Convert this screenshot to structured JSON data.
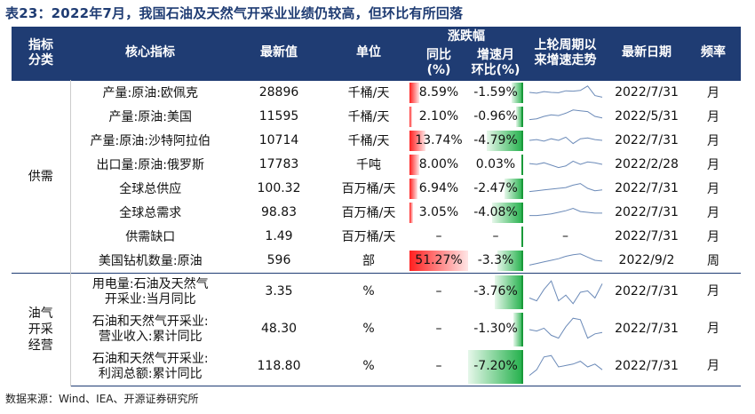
{
  "title": "表23：2022年7月，我国石油及天然气开采业业绩仍较高，但环比有所回落",
  "headers": {
    "category": "指标\n分类",
    "indicator": "核心指标",
    "latest_value": "最新值",
    "unit": "单位",
    "change": "涨跌幅",
    "yoy": "同比\n(%)",
    "mom": "增速月\n环比(%)",
    "trend": "上轮周期以\n来增速走势",
    "latest_date": "最新日期",
    "frequency": "频率"
  },
  "colors": {
    "header_bg": "#1f3c73",
    "yoy_bar": "#ff1f1f",
    "mom_bar": "#22b04a"
  },
  "groups": [
    {
      "category": "供需",
      "rows": [
        {
          "indicator": "产量:原油:欧佩克",
          "value": "28896",
          "unit": "千桶/天",
          "yoy": "8.59%",
          "yoy_level": 0.16,
          "mom": "-1.59%",
          "mom_level": 0.21,
          "date": "2022/7/31",
          "freq": "月",
          "trend": true
        },
        {
          "indicator": "产量:原油:美国",
          "value": "11595",
          "unit": "千桶/天",
          "yoy": "2.10%",
          "yoy_level": 0.04,
          "mom": "-0.96%",
          "mom_level": 0.13,
          "date": "2022/5/31",
          "freq": "月",
          "trend": true
        },
        {
          "indicator": "产量:原油:沙特阿拉伯",
          "value": "10714",
          "unit": "千桶/天",
          "yoy": "13.74%",
          "yoy_level": 0.27,
          "mom": "-4.79%",
          "mom_level": 0.66,
          "date": "2022/7/31",
          "freq": "月",
          "trend": true
        },
        {
          "indicator": "出口量:原油:俄罗斯",
          "value": "17783",
          "unit": "千吨",
          "yoy": "8.00%",
          "yoy_level": 0.16,
          "mom": "0.03%",
          "mom_level": 0.0,
          "date": "2022/2/28",
          "freq": "月",
          "trend": true
        },
        {
          "indicator": "全球总供应",
          "value": "100.32",
          "unit": "百万桶/天",
          "yoy": "6.94%",
          "yoy_level": 0.14,
          "mom": "-2.47%",
          "mom_level": 0.34,
          "date": "2022/7/31",
          "freq": "月",
          "trend": true
        },
        {
          "indicator": "全球总需求",
          "value": "98.83",
          "unit": "百万桶/天",
          "yoy": "3.05%",
          "yoy_level": 0.06,
          "mom": "-4.08%",
          "mom_level": 0.57,
          "date": "2022/7/31",
          "freq": "月",
          "trend": true
        },
        {
          "indicator": "供需缺口",
          "value": "1.49",
          "unit": "百万桶/天",
          "yoy": "–",
          "yoy_level": 0,
          "mom": "–",
          "mom_level": 0,
          "date": "2022/7/31",
          "freq": "月",
          "trend": false,
          "trend_text": "–"
        },
        {
          "indicator": "美国钻机数量:原油",
          "value": "596",
          "unit": "部",
          "yoy": "51.27%",
          "yoy_level": 1.0,
          "mom": "-3.3%",
          "mom_level": 0.46,
          "date": "2022/9/2",
          "freq": "周",
          "trend": true
        }
      ]
    },
    {
      "category": "油气\n开采\n经营",
      "rows": [
        {
          "indicator": "用电量:石油及天然气\n开采业:当月同比",
          "value": "3.35",
          "unit": "%",
          "yoy": "–",
          "yoy_level": 0,
          "mom": "-3.76%",
          "mom_level": 0.52,
          "date": "2022/7/31",
          "freq": "月",
          "trend": true
        },
        {
          "indicator": "石油和天然气开采业:\n营业收入:累计同比",
          "value": "48.30",
          "unit": "%",
          "yoy": "–",
          "yoy_level": 0,
          "mom": "-1.30%",
          "mom_level": 0.18,
          "date": "2022/7/31",
          "freq": "月",
          "trend": true
        },
        {
          "indicator": "石油和天然气开采业:\n利润总额:累计同比",
          "value": "118.80",
          "unit": "%",
          "yoy": "–",
          "yoy_level": 0,
          "mom": "-7.20%",
          "mom_level": 1.0,
          "date": "2022/7/31",
          "freq": "月",
          "trend": true
        }
      ]
    }
  ],
  "source": "数据来源：Wind、IEA、开源证券研究所"
}
